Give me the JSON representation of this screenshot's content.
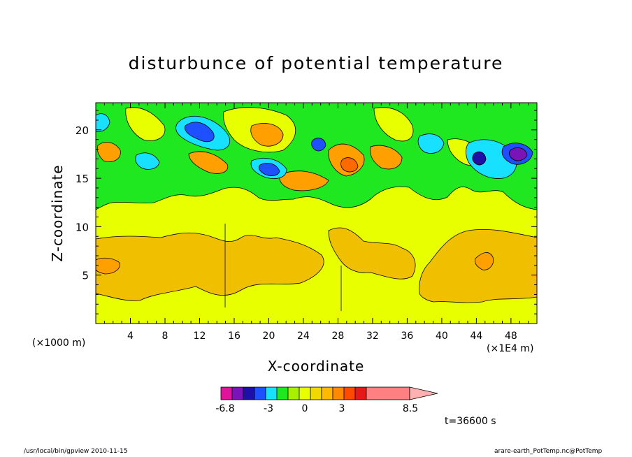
{
  "chart_data": {
    "type": "heatmap",
    "title": "disturbunce of potential temperature",
    "xlabel": "X-coordinate",
    "ylabel": "Z-coordinate",
    "x_unit_note": "(×1E4 m)",
    "y_unit_note": "(×1000 m)",
    "xlim": [
      0,
      51
    ],
    "ylim": [
      0,
      22.8
    ],
    "x_ticks": [
      4,
      8,
      12,
      16,
      20,
      24,
      28,
      32,
      36,
      40,
      44,
      48
    ],
    "y_ticks": [
      5,
      10,
      15,
      20
    ],
    "annotation": "t=36600 s",
    "colorbar": {
      "colors": [
        "#e0139a",
        "#7a13b8",
        "#1e0fa8",
        "#1e50ff",
        "#18e0ff",
        "#20e820",
        "#a8f000",
        "#e8ff00",
        "#f0d800",
        "#ffba00",
        "#ff8a00",
        "#ff4b00",
        "#e81818",
        "#ff8080"
      ],
      "labels": [
        "-6.8",
        "-3",
        "0",
        "3",
        "8.5"
      ],
      "extend": "max"
    },
    "grid": "off",
    "legend": "colorbar-below"
  },
  "footer": {
    "left": "/usr/local/bin/gpview   2010-11-15",
    "right": "arare-earth_PotTemp.nc@PotTemp"
  }
}
